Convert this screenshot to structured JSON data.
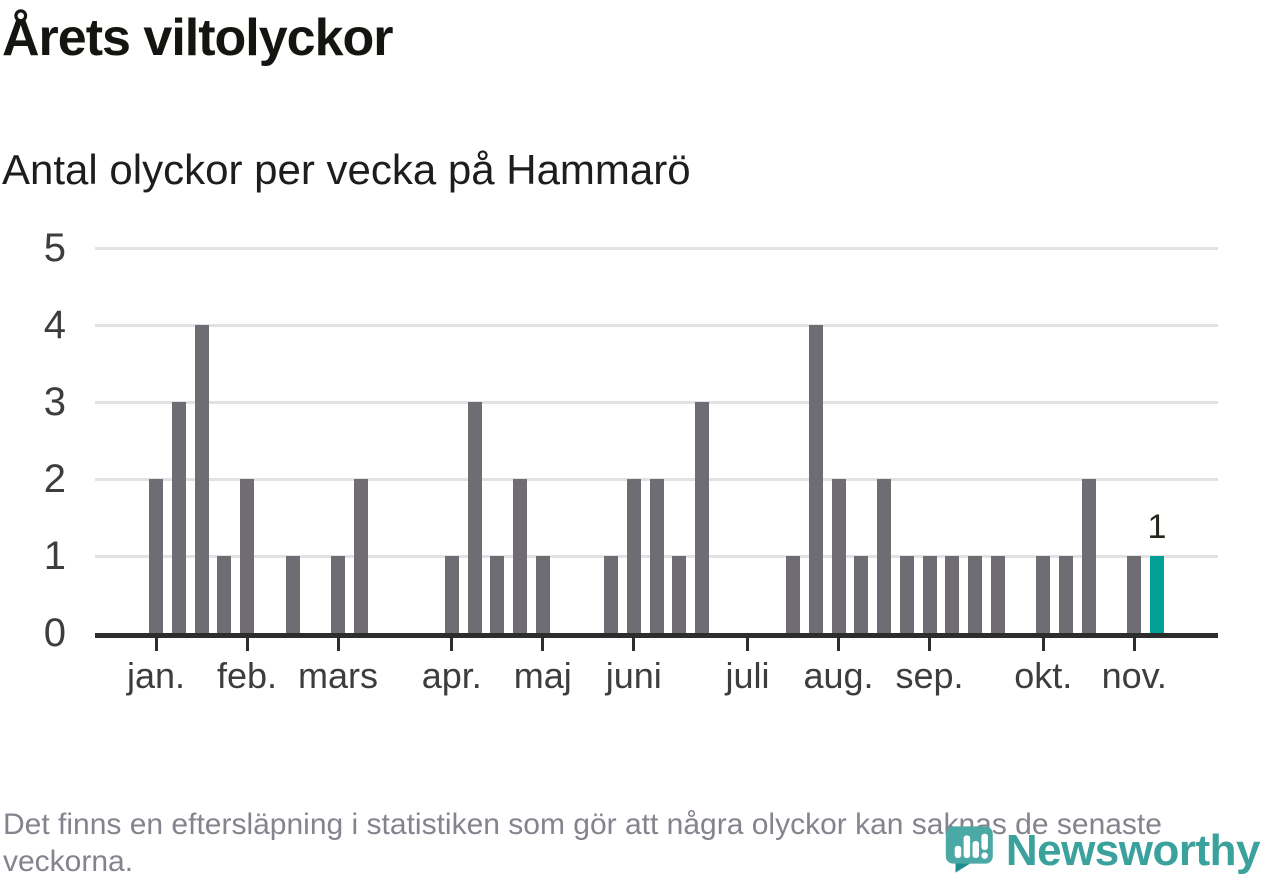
{
  "header": {
    "title": "Årets viltolyckor",
    "subtitle": "Antal olyckor per vecka på Hammarö"
  },
  "chart_data": {
    "type": "bar",
    "x_unit": "week-of-year",
    "values": [
      2,
      3,
      4,
      1,
      2,
      0,
      1,
      0,
      1,
      2,
      0,
      0,
      0,
      1,
      3,
      1,
      2,
      1,
      0,
      0,
      1,
      2,
      2,
      1,
      3,
      0,
      0,
      0,
      1,
      4,
      2,
      1,
      2,
      1,
      1,
      1,
      1,
      1,
      0,
      1,
      1,
      2,
      0,
      1,
      1
    ],
    "highlight_index": 44,
    "annotation": {
      "text": "1",
      "week_index": 44
    },
    "months": [
      {
        "label": "jan.",
        "start_week": 1
      },
      {
        "label": "feb.",
        "start_week": 5
      },
      {
        "label": "mars",
        "start_week": 9
      },
      {
        "label": "apr.",
        "start_week": 14
      },
      {
        "label": "maj",
        "start_week": 18
      },
      {
        "label": "juni",
        "start_week": 22
      },
      {
        "label": "juli",
        "start_week": 27
      },
      {
        "label": "aug.",
        "start_week": 31
      },
      {
        "label": "sep.",
        "start_week": 35
      },
      {
        "label": "okt.",
        "start_week": 40
      },
      {
        "label": "nov.",
        "start_week": 44
      }
    ],
    "y_ticks": [
      0,
      1,
      2,
      3,
      4,
      5
    ],
    "ylim": [
      0,
      5
    ],
    "grid": "horizontal",
    "legend": "none"
  },
  "footer": {
    "note": "Det finns en eftersläpning i statistiken som gör att några olyckor kan saknas de senaste veckorna."
  },
  "brand": {
    "name": "Newsworthy"
  },
  "colors": {
    "bar": "#6f6d73",
    "highlight": "#00a097",
    "grid": "#e2e2e2",
    "axis": "#2d2d2d",
    "tick_label": "#3d3d3d",
    "title": "#141410",
    "footer_text": "#84848e",
    "brand_teal": "#3aa19c",
    "icon_teal": "#4aa9a4",
    "icon_tail": "#1f8d8e"
  }
}
